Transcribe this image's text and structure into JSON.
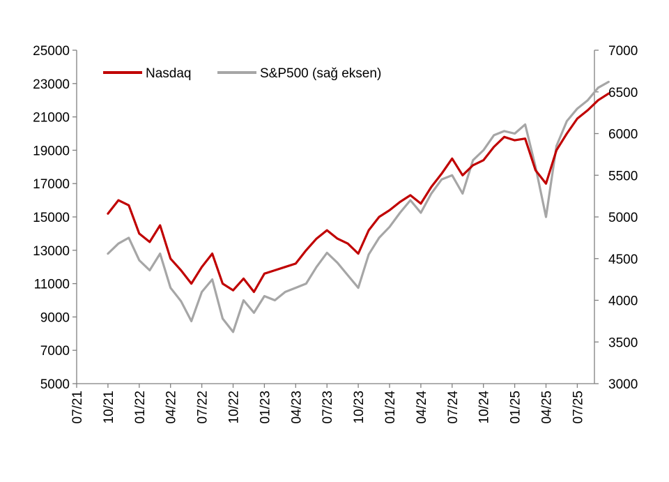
{
  "chart_data": {
    "type": "line",
    "title": "",
    "xlabel": "",
    "ylabel": "",
    "x_ticks": [
      "07/21",
      "10/21",
      "01/22",
      "04/22",
      "07/22",
      "10/22",
      "01/23",
      "04/23",
      "07/23",
      "10/23",
      "01/24",
      "04/24",
      "07/24",
      "10/24",
      "01/25",
      "04/25",
      "07/25"
    ],
    "y_left": {
      "lim": [
        5000,
        25000
      ],
      "ticks": [
        5000,
        7000,
        9000,
        11000,
        13000,
        15000,
        17000,
        19000,
        21000,
        23000,
        25000
      ]
    },
    "y_right": {
      "lim": [
        3000,
        7000
      ],
      "ticks": [
        3000,
        3500,
        4000,
        4500,
        5000,
        5500,
        6000,
        6500,
        7000
      ]
    },
    "grid": false,
    "legend_position": "top-left",
    "series": [
      {
        "name": "Nasdaq",
        "axis": "left",
        "color": "#c00000",
        "points": [
          [
            "10/21",
            15200
          ],
          [
            "11/21",
            16000
          ],
          [
            "12/21",
            15700
          ],
          [
            "01/22",
            14000
          ],
          [
            "02/22",
            13500
          ],
          [
            "03/22",
            14500
          ],
          [
            "04/22",
            12500
          ],
          [
            "05/22",
            11800
          ],
          [
            "06/22",
            11000
          ],
          [
            "07/22",
            12000
          ],
          [
            "08/22",
            12800
          ],
          [
            "09/22",
            11000
          ],
          [
            "10/22",
            10600
          ],
          [
            "11/22",
            11300
          ],
          [
            "12/22",
            10500
          ],
          [
            "01/23",
            11600
          ],
          [
            "02/23",
            11800
          ],
          [
            "03/23",
            12000
          ],
          [
            "04/23",
            12200
          ],
          [
            "05/23",
            13000
          ],
          [
            "06/23",
            13700
          ],
          [
            "07/23",
            14200
          ],
          [
            "08/23",
            13700
          ],
          [
            "09/23",
            13400
          ],
          [
            "10/23",
            12800
          ],
          [
            "11/23",
            14200
          ],
          [
            "12/23",
            15000
          ],
          [
            "01/24",
            15400
          ],
          [
            "02/24",
            15900
          ],
          [
            "03/24",
            16300
          ],
          [
            "04/24",
            15800
          ],
          [
            "05/24",
            16800
          ],
          [
            "06/24",
            17600
          ],
          [
            "07/24",
            18500
          ],
          [
            "08/24",
            17500
          ],
          [
            "09/24",
            18100
          ],
          [
            "10/24",
            18400
          ],
          [
            "11/24",
            19200
          ],
          [
            "12/24",
            19800
          ],
          [
            "01/25",
            19600
          ],
          [
            "02/25",
            19700
          ],
          [
            "03/25",
            17800
          ],
          [
            "04/25",
            17000
          ],
          [
            "05/25",
            19000
          ],
          [
            "06/25",
            20000
          ],
          [
            "07/25",
            20900
          ],
          [
            "08/25",
            21400
          ],
          [
            "09/25",
            22000
          ],
          [
            "10/25",
            22400
          ]
        ]
      },
      {
        "name": "S&P500 (sağ eksen)",
        "axis": "right",
        "color": "#a6a6a6",
        "points": [
          [
            "10/21",
            4560
          ],
          [
            "11/21",
            4680
          ],
          [
            "12/21",
            4750
          ],
          [
            "01/22",
            4480
          ],
          [
            "02/22",
            4360
          ],
          [
            "03/22",
            4560
          ],
          [
            "04/22",
            4150
          ],
          [
            "05/22",
            3990
          ],
          [
            "06/22",
            3750
          ],
          [
            "07/22",
            4100
          ],
          [
            "08/22",
            4250
          ],
          [
            "09/22",
            3780
          ],
          [
            "10/22",
            3620
          ],
          [
            "11/22",
            4000
          ],
          [
            "12/22",
            3850
          ],
          [
            "01/23",
            4050
          ],
          [
            "02/23",
            4000
          ],
          [
            "03/23",
            4100
          ],
          [
            "04/23",
            4150
          ],
          [
            "05/23",
            4200
          ],
          [
            "06/23",
            4400
          ],
          [
            "07/23",
            4570
          ],
          [
            "08/23",
            4450
          ],
          [
            "09/23",
            4300
          ],
          [
            "10/23",
            4150
          ],
          [
            "11/23",
            4550
          ],
          [
            "12/23",
            4750
          ],
          [
            "01/24",
            4880
          ],
          [
            "02/24",
            5050
          ],
          [
            "03/24",
            5200
          ],
          [
            "04/24",
            5050
          ],
          [
            "05/24",
            5280
          ],
          [
            "06/24",
            5450
          ],
          [
            "07/24",
            5500
          ],
          [
            "08/24",
            5280
          ],
          [
            "09/24",
            5680
          ],
          [
            "10/24",
            5800
          ],
          [
            "11/24",
            5980
          ],
          [
            "12/24",
            6030
          ],
          [
            "01/25",
            6000
          ],
          [
            "02/25",
            6110
          ],
          [
            "03/25",
            5600
          ],
          [
            "04/25",
            5000
          ],
          [
            "05/25",
            5850
          ],
          [
            "06/25",
            6150
          ],
          [
            "07/25",
            6300
          ],
          [
            "08/25",
            6400
          ],
          [
            "09/25",
            6550
          ],
          [
            "10/25",
            6620
          ]
        ]
      }
    ]
  }
}
